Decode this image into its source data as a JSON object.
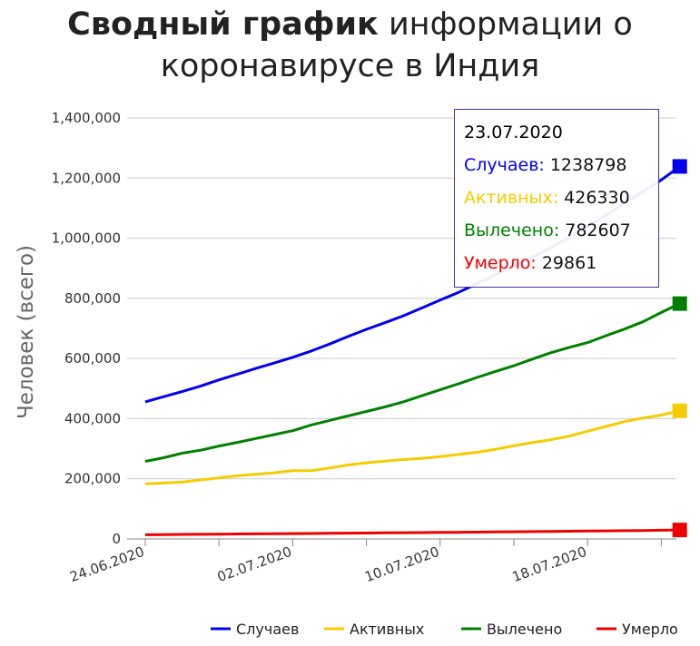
{
  "title": {
    "bold": "Сводный график",
    "rest": "информации о коронавирусе в Индия"
  },
  "chart_data": {
    "type": "line",
    "ylabel": "Человек (всего)",
    "xlabel": "",
    "ylim": [
      0,
      1400000
    ],
    "y_ticks": [
      "0",
      "200,000",
      "400,000",
      "600,000",
      "800,000",
      "1,000,000",
      "1,200,000",
      "1,400,000"
    ],
    "x_tick_labels": [
      "24.06.2020",
      "02.07.2020",
      "10.07.2020",
      "18.07.2020"
    ],
    "x": [
      "24.06.2020",
      "25.06.2020",
      "26.06.2020",
      "27.06.2020",
      "28.06.2020",
      "29.06.2020",
      "30.06.2020",
      "01.07.2020",
      "02.07.2020",
      "03.07.2020",
      "04.07.2020",
      "05.07.2020",
      "06.07.2020",
      "07.07.2020",
      "08.07.2020",
      "09.07.2020",
      "10.07.2020",
      "11.07.2020",
      "12.07.2020",
      "13.07.2020",
      "14.07.2020",
      "15.07.2020",
      "16.07.2020",
      "17.07.2020",
      "18.07.2020",
      "19.07.2020",
      "20.07.2020",
      "21.07.2020",
      "22.07.2020",
      "23.07.2020"
    ],
    "series": [
      {
        "name": "Случаев",
        "color": "#0000ee",
        "values": [
          456000,
          473000,
          490000,
          508000,
          529000,
          548000,
          567000,
          585000,
          604000,
          625000,
          648000,
          673000,
          697000,
          719000,
          742000,
          768000,
          794000,
          820000,
          849000,
          879000,
          907000,
          937000,
          968000,
          1003000,
          1039000,
          1077000,
          1118000,
          1155000,
          1194000,
          1238798
        ]
      },
      {
        "name": "Активных",
        "color": "#f5cc00",
        "values": [
          183000,
          186000,
          189000,
          196000,
          203000,
          210000,
          215000,
          220000,
          227000,
          227000,
          236000,
          246000,
          253000,
          259000,
          264000,
          268000,
          274000,
          281000,
          288000,
          298000,
          310000,
          320000,
          330000,
          342000,
          358000,
          374000,
          390000,
          402000,
          412000,
          426330
        ]
      },
      {
        "name": "Вылечено",
        "color": "#008000",
        "values": [
          258000,
          270000,
          285000,
          295000,
          309000,
          321000,
          334000,
          347000,
          360000,
          379000,
          394000,
          409000,
          424000,
          439000,
          456000,
          476000,
          496000,
          516000,
          537000,
          557000,
          576000,
          598000,
          619000,
          637000,
          653000,
          676000,
          698000,
          722000,
          753000,
          782607
        ]
      },
      {
        "name": "Умерло",
        "color": "#ee0000",
        "values": [
          14000,
          14500,
          15000,
          15400,
          16000,
          16500,
          17000,
          17400,
          17800,
          18200,
          18700,
          19200,
          19700,
          20200,
          20700,
          21100,
          21600,
          22100,
          22700,
          23200,
          23700,
          24300,
          24900,
          25500,
          26300,
          27000,
          27600,
          28200,
          29000,
          29861
        ]
      }
    ],
    "legend_position": "bottom-right",
    "grid": true,
    "tooltip": {
      "date": "23.07.2020",
      "rows": [
        {
          "label": "Случаев:",
          "value": "1238798",
          "color": "#0000ee"
        },
        {
          "label": "Активных:",
          "value": "426330",
          "color": "#f5cc00"
        },
        {
          "label": "Вылечено:",
          "value": "782607",
          "color": "#008000"
        },
        {
          "label": "Умерло:",
          "value": "29861",
          "color": "#ee0000"
        }
      ]
    }
  }
}
